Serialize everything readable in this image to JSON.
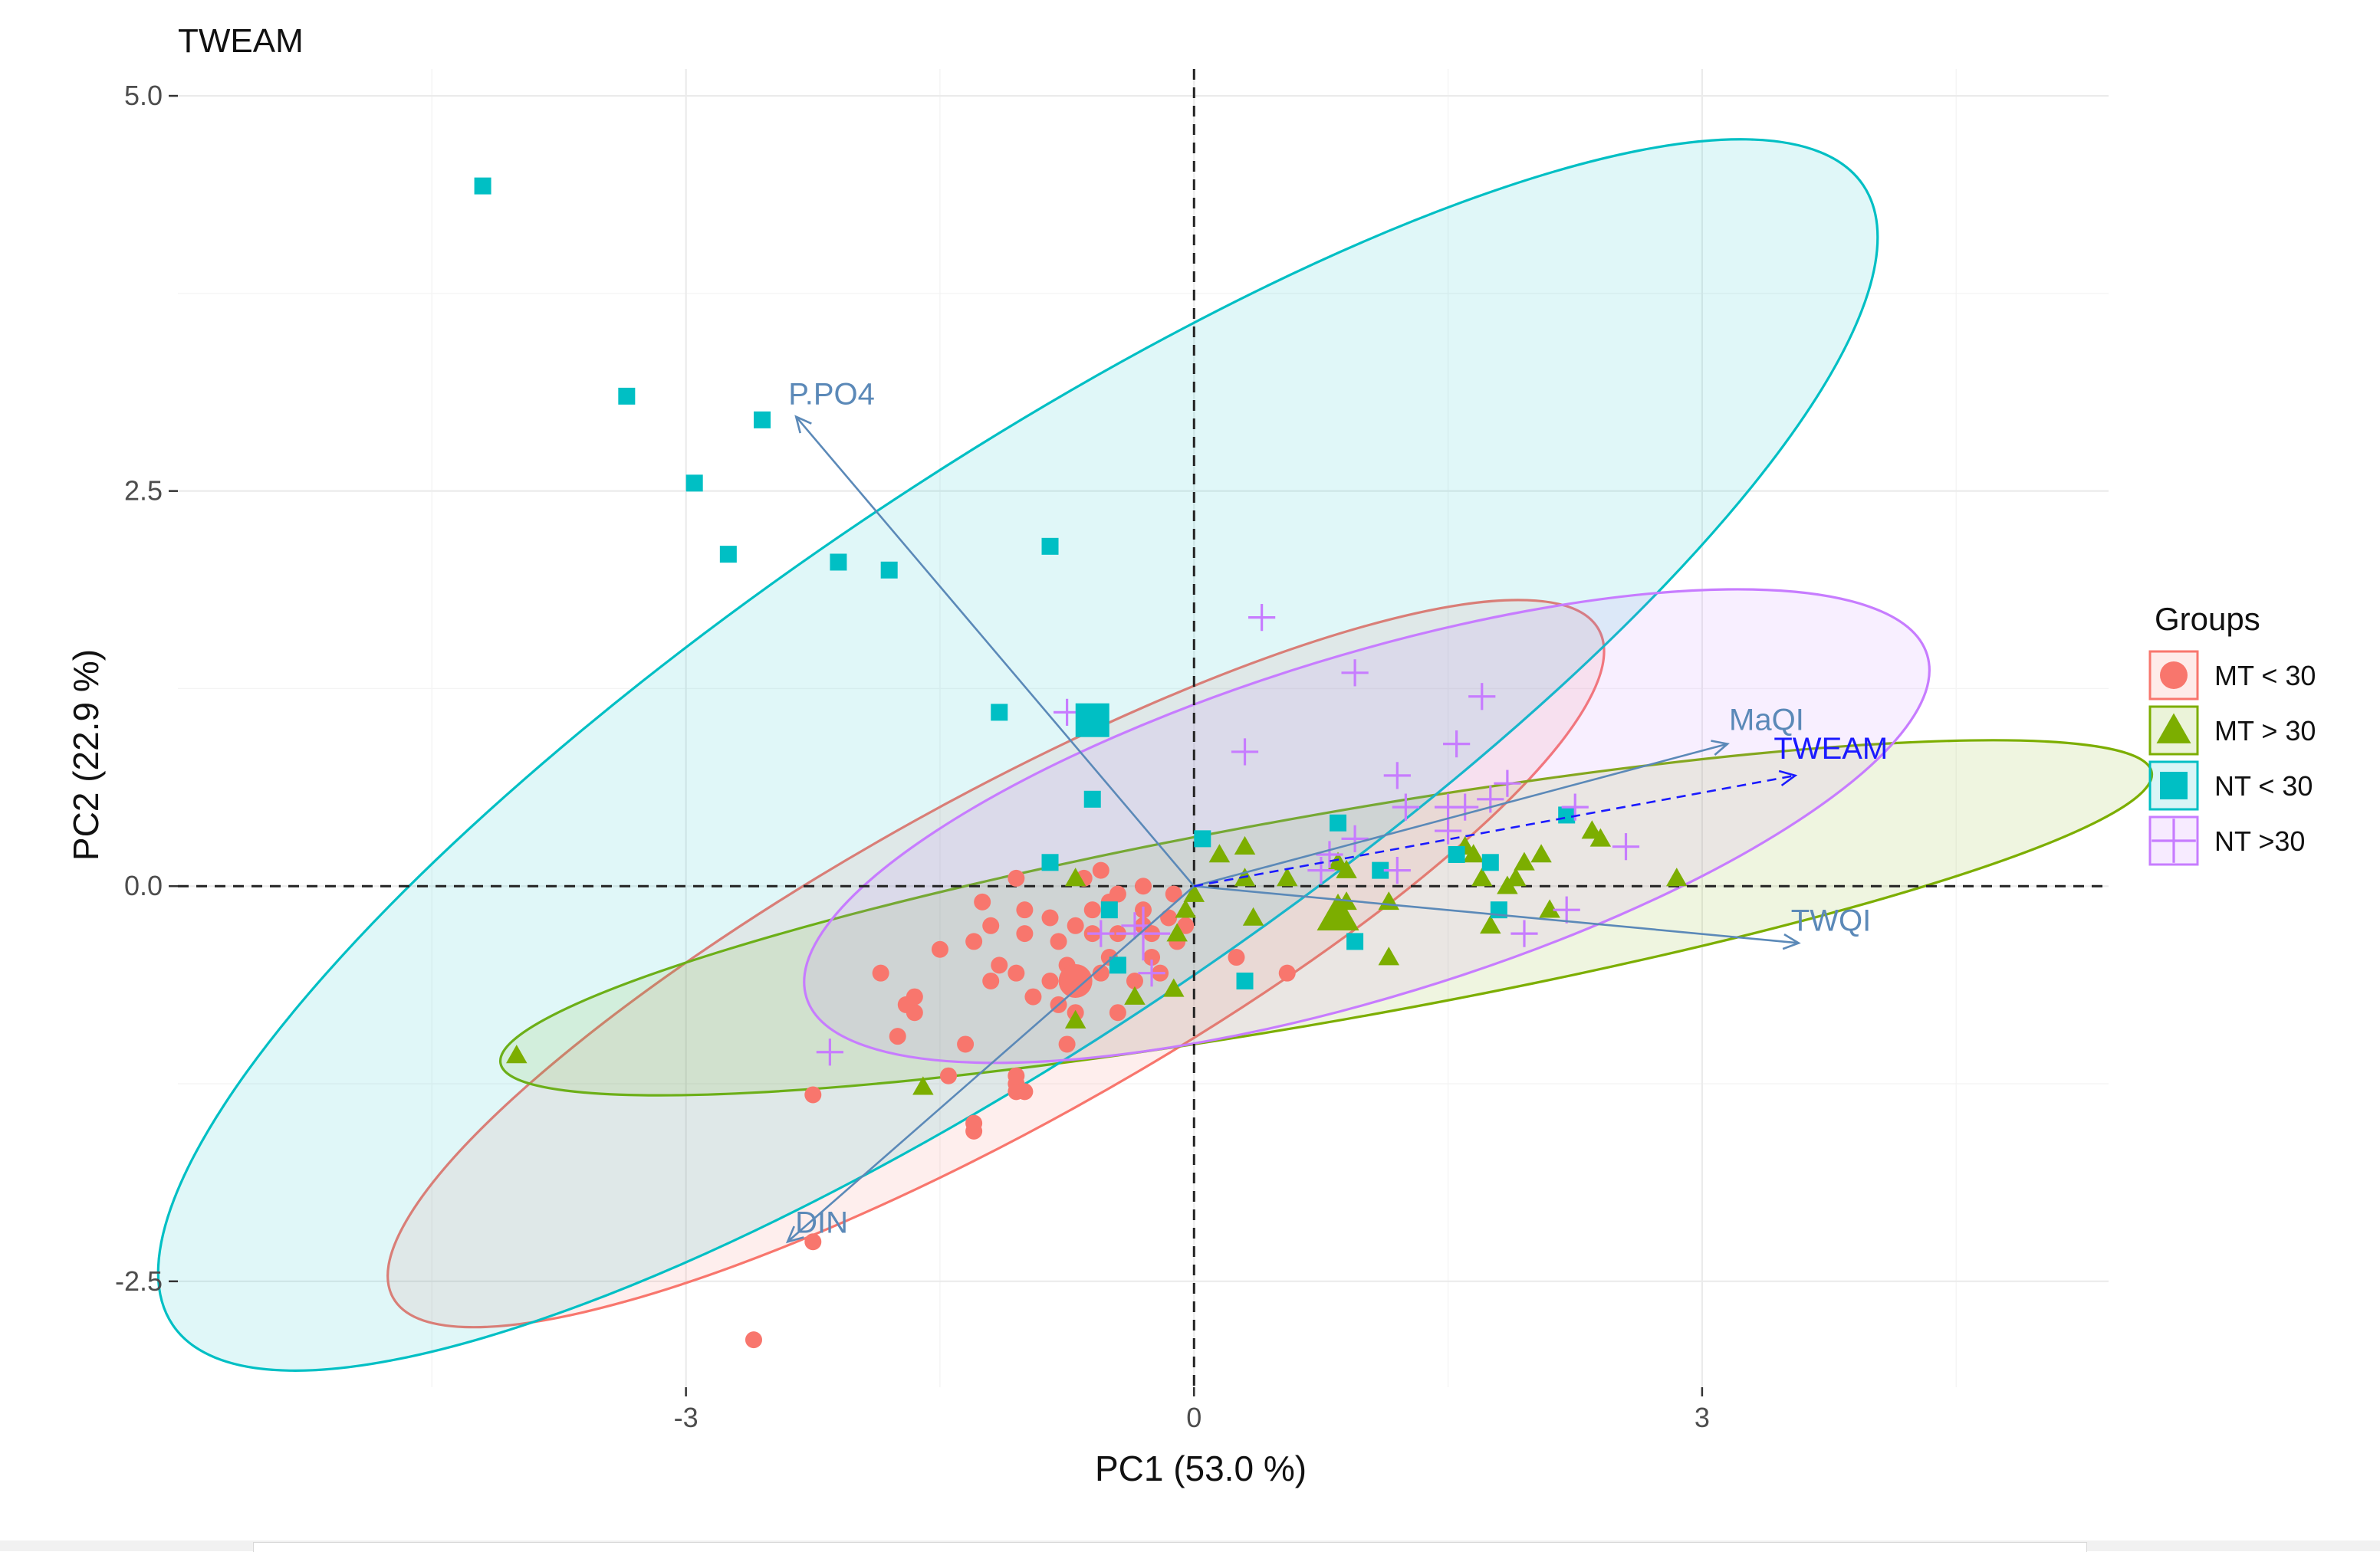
{
  "chart_data": {
    "type": "scatter",
    "title": "TWEAM",
    "xlabel": "PC1 (53.0 %)",
    "ylabel": "PC2 (22.9 %)",
    "xlim": [
      -6.0,
      5.4
    ],
    "ylim": [
      -3.17,
      5.17
    ],
    "x_ticks": [
      {
        "v": -3,
        "label": "-3"
      },
      {
        "v": 0,
        "label": "0"
      },
      {
        "v": 3,
        "label": "3"
      }
    ],
    "y_ticks": [
      {
        "v": -2.5,
        "label": "-2.5"
      },
      {
        "v": 0,
        "label": "0.0"
      },
      {
        "v": 2.5,
        "label": "2.5"
      },
      {
        "v": 5,
        "label": "5.0"
      }
    ],
    "grid": true,
    "legend": {
      "title": "Groups",
      "position": "right",
      "entries": [
        {
          "label": "MT < 30",
          "color": "#F8766D",
          "shape": "circle"
        },
        {
          "label": "MT > 30",
          "color": "#7CAE00",
          "shape": "triangle"
        },
        {
          "label": "NT < 30",
          "color": "#00BFC4",
          "shape": "square"
        },
        {
          "label": "NT >30",
          "color": "#C77CFF",
          "shape": "plus"
        }
      ]
    },
    "groups": [
      {
        "name": "MT < 30",
        "color": "#F8766D",
        "shape": "circle",
        "ellipse": {
          "cx": -1.17,
          "cy": -0.49,
          "rx": 4.07,
          "ry": 0.97,
          "angle_deg": 29
        },
        "mean": [
          -0.7,
          -0.6
        ],
        "points": [
          [
            -2.6,
            -2.87
          ],
          [
            -2.25,
            -2.25
          ],
          [
            -2.25,
            -1.32
          ],
          [
            -1.75,
            -0.95
          ],
          [
            -1.65,
            -0.8
          ],
          [
            -1.7,
            -0.75
          ],
          [
            -1.45,
            -1.2
          ],
          [
            -1.3,
            -1.55
          ],
          [
            -1.3,
            -1.5
          ],
          [
            -1.05,
            -1.25
          ],
          [
            -1.05,
            -1.3
          ],
          [
            -1.05,
            -1.2
          ],
          [
            -1.0,
            -1.3
          ],
          [
            -1.3,
            -0.35
          ],
          [
            -1.5,
            -0.4
          ],
          [
            -1.15,
            -0.5
          ],
          [
            -1.0,
            -0.3
          ],
          [
            -1.05,
            -0.55
          ],
          [
            -0.95,
            -0.7
          ],
          [
            -0.85,
            -0.6
          ],
          [
            -0.8,
            -0.75
          ],
          [
            -0.75,
            -0.5
          ],
          [
            -0.7,
            -0.25
          ],
          [
            -0.6,
            -0.3
          ],
          [
            -0.55,
            -0.55
          ],
          [
            -0.5,
            -0.45
          ],
          [
            -0.45,
            -0.3
          ],
          [
            -0.45,
            -0.8
          ],
          [
            -0.35,
            -0.6
          ],
          [
            -0.3,
            -0.15
          ],
          [
            -0.25,
            -0.45
          ],
          [
            -0.2,
            -0.55
          ],
          [
            -0.15,
            -0.2
          ],
          [
            -0.1,
            -0.35
          ],
          [
            -0.05,
            -0.25
          ],
          [
            -0.12,
            -0.05
          ],
          [
            -0.5,
            -0.1
          ],
          [
            -0.6,
            -0.15
          ],
          [
            -0.85,
            -0.2
          ],
          [
            -1.0,
            -0.15
          ],
          [
            -1.2,
            -0.25
          ],
          [
            -0.8,
            -0.35
          ],
          [
            -0.7,
            -0.8
          ],
          [
            -0.75,
            -1.0
          ],
          [
            -0.3,
            -0.25
          ],
          [
            -0.25,
            -0.3
          ],
          [
            0.25,
            -0.45
          ],
          [
            0.55,
            -0.55
          ],
          [
            -0.55,
            0.1
          ],
          [
            -0.65,
            0.05
          ],
          [
            -1.05,
            0.05
          ],
          [
            -0.3,
            0.0
          ],
          [
            -0.45,
            -0.05
          ],
          [
            -1.2,
            -0.6
          ],
          [
            -1.25,
            -0.1
          ],
          [
            -1.35,
            -1.0
          ],
          [
            -1.65,
            -0.7
          ],
          [
            -1.85,
            -0.55
          ]
        ]
      },
      {
        "name": "MT > 30",
        "color": "#7CAE00",
        "shape": "triangle",
        "ellipse": {
          "cx": 0.78,
          "cy": -0.2,
          "rx": 4.95,
          "ry": 0.61,
          "angle_deg": 10
        },
        "mean": [
          0.85,
          -0.18
        ],
        "points": [
          [
            -4.0,
            -1.07
          ],
          [
            -1.6,
            -1.27
          ],
          [
            -0.7,
            -0.85
          ],
          [
            -0.7,
            0.05
          ],
          [
            -0.35,
            -0.7
          ],
          [
            -0.12,
            -0.65
          ],
          [
            -0.1,
            -0.3
          ],
          [
            -0.05,
            -0.15
          ],
          [
            0.0,
            -0.05
          ],
          [
            0.3,
            0.25
          ],
          [
            0.3,
            0.05
          ],
          [
            0.55,
            0.05
          ],
          [
            0.85,
            0.15
          ],
          [
            0.9,
            0.1
          ],
          [
            0.9,
            -0.1
          ],
          [
            1.15,
            -0.45
          ],
          [
            1.15,
            -0.1
          ],
          [
            1.6,
            0.25
          ],
          [
            1.65,
            0.2
          ],
          [
            1.7,
            0.05
          ],
          [
            1.75,
            -0.25
          ],
          [
            1.85,
            0.0
          ],
          [
            1.9,
            0.05
          ],
          [
            1.95,
            0.15
          ],
          [
            2.05,
            0.2
          ],
          [
            2.1,
            -0.15
          ],
          [
            2.35,
            0.35
          ],
          [
            2.4,
            0.3
          ],
          [
            2.85,
            0.05
          ],
          [
            0.35,
            -0.2
          ],
          [
            0.15,
            0.2
          ]
        ]
      },
      {
        "name": "NT < 30",
        "color": "#00BFC4",
        "shape": "square",
        "ellipse": {
          "cx": -1.04,
          "cy": 0.83,
          "rx": 6.02,
          "ry": 1.66,
          "angle_deg": 34
        },
        "mean": [
          -0.6,
          1.05
        ],
        "points": [
          [
            -4.2,
            4.43
          ],
          [
            -3.35,
            3.1
          ],
          [
            -2.95,
            2.55
          ],
          [
            -2.75,
            2.1
          ],
          [
            -2.55,
            2.95
          ],
          [
            -2.1,
            2.05
          ],
          [
            -1.8,
            2.0
          ],
          [
            -0.85,
            2.15
          ],
          [
            -1.15,
            1.1
          ],
          [
            -0.6,
            0.55
          ],
          [
            -0.85,
            0.15
          ],
          [
            0.05,
            0.3
          ],
          [
            0.85,
            0.4
          ],
          [
            1.1,
            0.1
          ],
          [
            1.55,
            0.2
          ],
          [
            1.75,
            0.15
          ],
          [
            1.8,
            -0.15
          ],
          [
            2.2,
            0.45
          ],
          [
            0.95,
            -0.35
          ],
          [
            0.3,
            -0.6
          ],
          [
            -0.45,
            -0.5
          ],
          [
            -0.5,
            -0.15
          ]
        ]
      },
      {
        "name": "NT >30",
        "color": "#C77CFF",
        "shape": "plus",
        "ellipse": {
          "cx": 1.02,
          "cy": 0.38,
          "rx": 3.46,
          "ry": 1.01,
          "angle_deg": 17
        },
        "mean": [
          -0.3,
          -0.3
        ],
        "points": [
          [
            -2.15,
            -1.05
          ],
          [
            -0.75,
            1.1
          ],
          [
            -0.55,
            -0.3
          ],
          [
            -0.35,
            -0.25
          ],
          [
            -0.25,
            -0.55
          ],
          [
            0.3,
            0.85
          ],
          [
            0.4,
            1.7
          ],
          [
            0.75,
            0.1
          ],
          [
            0.95,
            1.35
          ],
          [
            1.2,
            0.7
          ],
          [
            1.25,
            0.5
          ],
          [
            1.5,
            0.5
          ],
          [
            1.55,
            0.9
          ],
          [
            1.6,
            0.5
          ],
          [
            1.7,
            1.2
          ],
          [
            1.75,
            0.55
          ],
          [
            1.85,
            0.65
          ],
          [
            1.2,
            0.1
          ],
          [
            1.95,
            -0.3
          ],
          [
            2.2,
            -0.15
          ],
          [
            2.25,
            0.5
          ],
          [
            2.55,
            0.25
          ],
          [
            1.5,
            0.35
          ],
          [
            0.95,
            0.3
          ],
          [
            0.8,
            0.2
          ]
        ]
      }
    ],
    "variables": [
      {
        "name": "P.PO4",
        "x": -2.35,
        "y": 2.97,
        "dashed": false,
        "color": "#5B89B8"
      },
      {
        "name": "DIN",
        "x": -2.4,
        "y": -2.25,
        "dashed": false,
        "color": "#5B89B8"
      },
      {
        "name": "MaQI",
        "x": 3.15,
        "y": 0.9,
        "dashed": false,
        "color": "#5B89B8"
      },
      {
        "name": "TWQI",
        "x": 3.57,
        "y": -0.36,
        "dashed": false,
        "color": "#5B89B8"
      },
      {
        "name": "TWEAM",
        "x": 3.55,
        "y": 0.7,
        "dashed": true,
        "color": "#1a1aff"
      }
    ]
  }
}
